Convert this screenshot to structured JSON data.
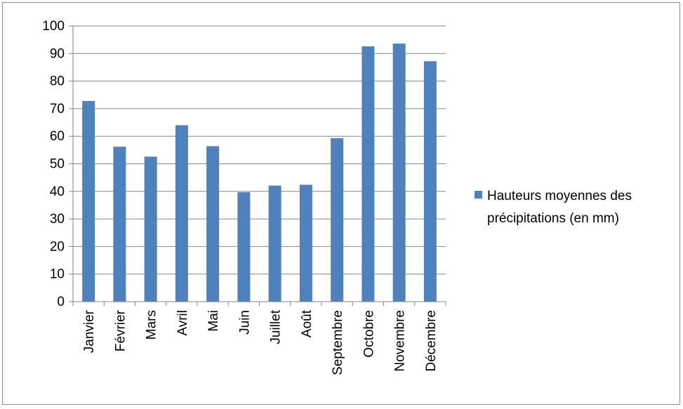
{
  "chart_data": {
    "type": "bar",
    "title": "",
    "xlabel": "",
    "ylabel": "",
    "categories": [
      "Janvier",
      "Février",
      "Mars",
      "Avril",
      "Mai",
      "Juin",
      "Juillet",
      "Août",
      "Septembre",
      "Octobre",
      "Novembre",
      "Décembre"
    ],
    "series": [
      {
        "name": "Hauteurs moyennes des précipitations (en mm)",
        "name_lines": [
          "Hauteurs moyennes des",
          "précipitations (en mm)"
        ],
        "values": [
          72.8,
          56.2,
          52.6,
          64.0,
          56.4,
          39.7,
          42.1,
          42.4,
          59.3,
          92.6,
          93.6,
          87.2
        ],
        "color": "#4F81BD"
      }
    ],
    "ylim": [
      0,
      100
    ],
    "yticks": [
      0,
      10,
      20,
      30,
      40,
      50,
      60,
      70,
      80,
      90,
      100
    ],
    "grid": true,
    "legend_position": "right"
  }
}
